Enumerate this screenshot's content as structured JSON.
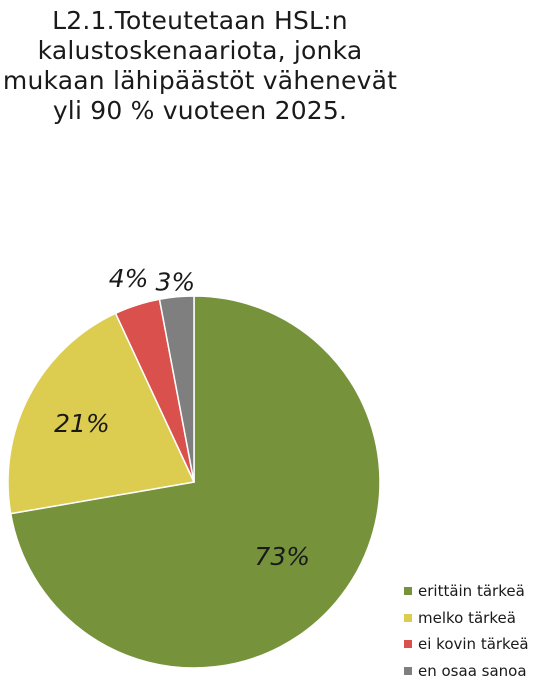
{
  "chart_data": {
    "type": "pie",
    "title": "L2.1.Toteutetaan HSL:n kalustoskenaariota, jonka mukaan lähipäästöt vähenevät yli 90 % vuoteen 2025.",
    "categories": [
      "erittäin tärkeä",
      "melko tärkeä",
      "ei kovin tärkeä",
      "en osaa sanoa"
    ],
    "values": [
      73,
      21,
      4,
      3
    ],
    "data_labels": [
      "73%",
      "21%",
      "4%",
      "3%"
    ],
    "colors": [
      "#76933c",
      "#dccc4f",
      "#d9504c",
      "#7f7f7f"
    ],
    "legend_position": "bottom-right"
  }
}
